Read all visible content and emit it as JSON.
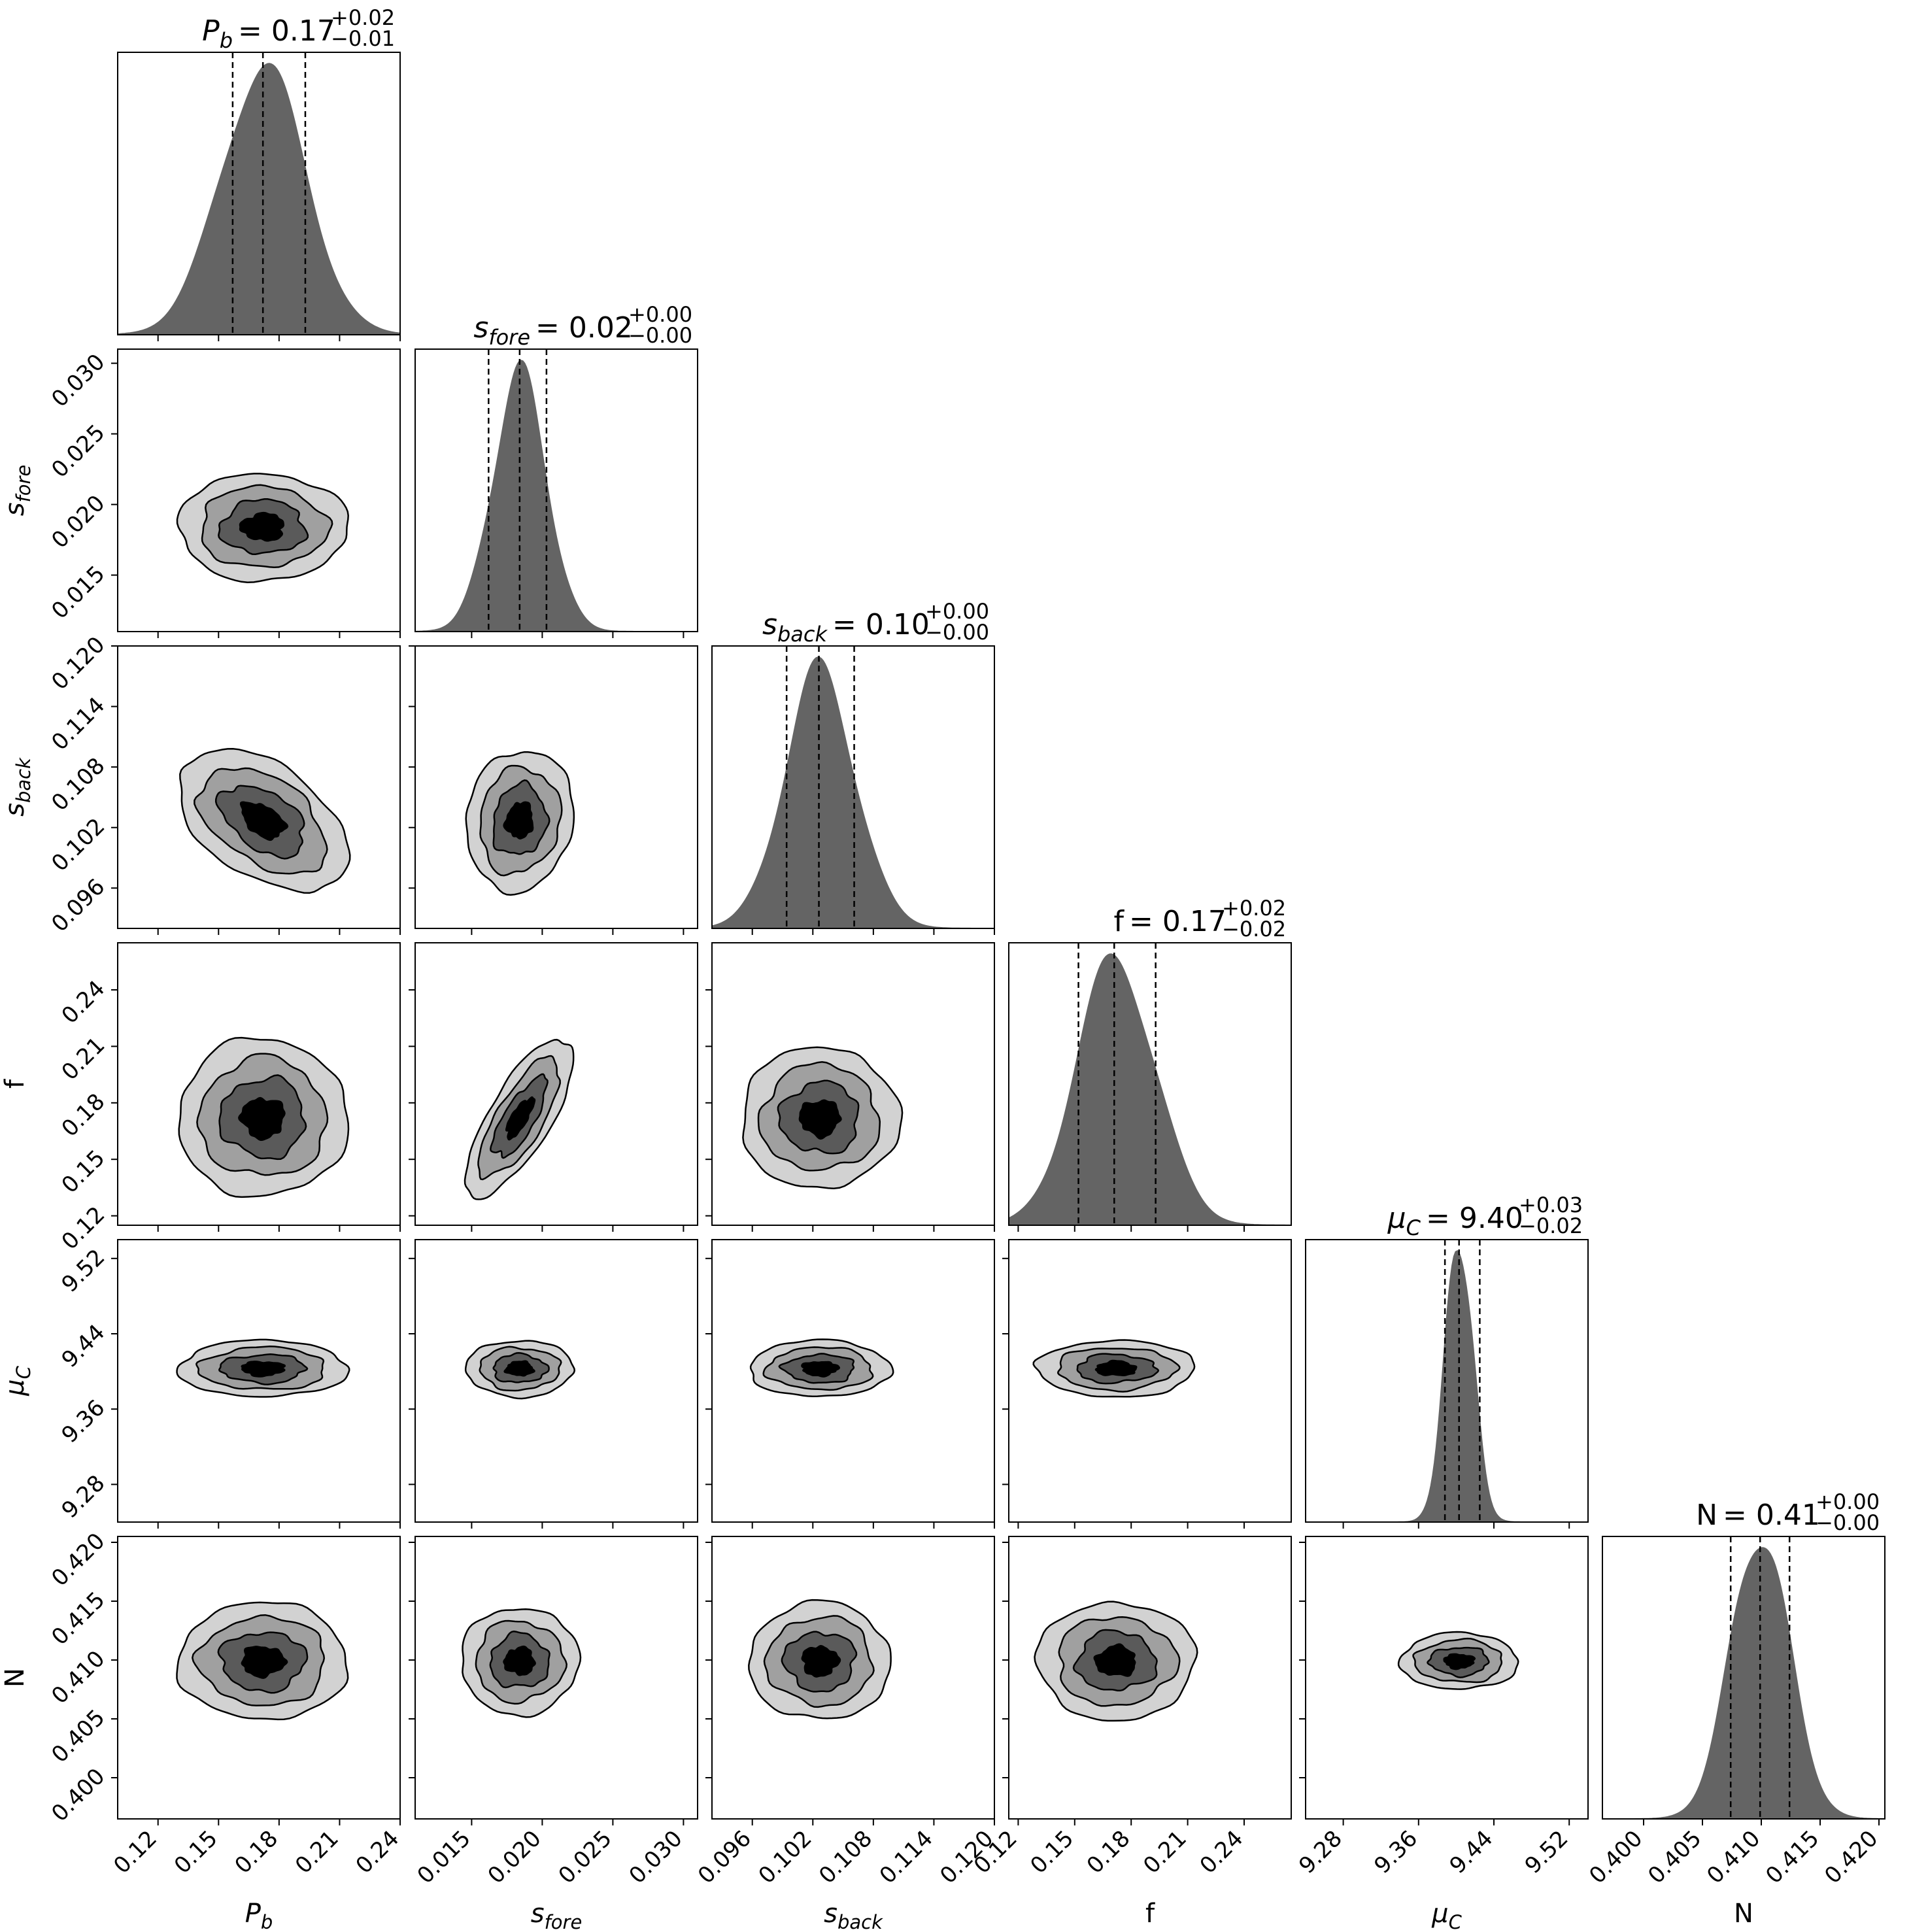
{
  "chart_data": {
    "type": "corner",
    "colors": {
      "hist": "#646464",
      "levels": [
        "#d2d2d2",
        "#a0a0a0",
        "#5a5a5a",
        "#000000"
      ],
      "line": "#000000"
    },
    "params": [
      {
        "key": "pb",
        "label": "P",
        "label_sub": "b",
        "median": "0.17",
        "err_plus": "+0.02",
        "err_minus": "−0.01",
        "range": [
          0.1,
          0.24
        ],
        "ticks": [
          0.12,
          0.15,
          0.18,
          0.21,
          0.24
        ],
        "tick_labels": [
          "0.12",
          "0.15",
          "0.18",
          "0.21",
          "0.24"
        ],
        "mean": 0.172,
        "sd": 0.021,
        "quantiles": [
          0.157,
          0.172,
          0.193
        ]
      },
      {
        "key": "sfore",
        "label": "s",
        "label_sub": "fore",
        "median": "0.02",
        "err_plus": "+0.00",
        "err_minus": "−0.00",
        "range": [
          0.011,
          0.031
        ],
        "ticks": [
          0.015,
          0.02,
          0.025,
          0.03
        ],
        "tick_labels": [
          "0.015",
          "0.020",
          "0.025",
          "0.030"
        ],
        "mean": 0.0184,
        "sd": 0.0019,
        "quantiles": [
          0.0162,
          0.0184,
          0.0203
        ]
      },
      {
        "key": "sback",
        "label": "s",
        "label_sub": "back",
        "median": "0.10",
        "err_plus": "+0.00",
        "err_minus": "−0.00",
        "range": [
          0.092,
          0.12
        ],
        "ticks": [
          0.096,
          0.102,
          0.108,
          0.114,
          0.12
        ],
        "tick_labels": [
          "0.096",
          "0.102",
          "0.108",
          "0.114",
          "0.120"
        ],
        "mean": 0.1027,
        "sd": 0.0035,
        "quantiles": [
          0.0994,
          0.1026,
          0.1061
        ]
      },
      {
        "key": "f",
        "label": "f",
        "label_sub": "",
        "median": "0.17",
        "err_plus": "+0.02",
        "err_minus": "−0.02",
        "range": [
          0.115,
          0.265
        ],
        "ticks": [
          0.12,
          0.15,
          0.18,
          0.21,
          0.24
        ],
        "tick_labels": [
          "0.12",
          "0.15",
          "0.18",
          "0.21",
          "0.24"
        ],
        "mean": 0.172,
        "sd": 0.021,
        "quantiles": [
          0.152,
          0.171,
          0.193
        ]
      },
      {
        "key": "muc",
        "label": "μ",
        "label_sub": "C",
        "median": "9.40",
        "err_plus": "+0.03",
        "err_minus": "−0.02",
        "range": [
          9.24,
          9.54
        ],
        "ticks": [
          9.28,
          9.36,
          9.44,
          9.52
        ],
        "tick_labels": [
          "9.28",
          "9.36",
          "9.44",
          "9.52"
        ],
        "mean": 9.403,
        "sd": 0.015,
        "quantiles": [
          9.388,
          9.403,
          9.425
        ]
      },
      {
        "key": "n",
        "label": "N",
        "label_sub": "",
        "median": "0.41",
        "err_plus": "+0.00",
        "err_minus": "−0.00",
        "range": [
          0.3965,
          0.4205
        ],
        "ticks": [
          0.4,
          0.405,
          0.41,
          0.415,
          0.42
        ],
        "tick_labels": [
          "0.400",
          "0.405",
          "0.410",
          "0.415",
          "0.420"
        ],
        "mean": 0.4099,
        "sd": 0.0025,
        "quantiles": [
          0.4074,
          0.4099,
          0.4124
        ]
      }
    ],
    "correlations": [
      {
        "i": 1,
        "j": 0,
        "rho": 0.0
      },
      {
        "i": 2,
        "j": 0,
        "rho": -0.45
      },
      {
        "i": 2,
        "j": 1,
        "rho": 0.1
      },
      {
        "i": 3,
        "j": 0,
        "rho": 0.0
      },
      {
        "i": 3,
        "j": 1,
        "rho": 0.75
      },
      {
        "i": 3,
        "j": 2,
        "rho": 0.0
      },
      {
        "i": 4,
        "j": 0,
        "rho": 0.0
      },
      {
        "i": 4,
        "j": 1,
        "rho": 0.0
      },
      {
        "i": 4,
        "j": 2,
        "rho": 0.0
      },
      {
        "i": 4,
        "j": 3,
        "rho": 0.0
      },
      {
        "i": 5,
        "j": 0,
        "rho": 0.0
      },
      {
        "i": 5,
        "j": 1,
        "rho": 0.0
      },
      {
        "i": 5,
        "j": 2,
        "rho": 0.0
      },
      {
        "i": 5,
        "j": 3,
        "rho": 0.0
      },
      {
        "i": 5,
        "j": 4,
        "rho": 0.0
      }
    ],
    "contour_sigma_levels": [
      2.0,
      1.5,
      1.0,
      0.5
    ]
  }
}
